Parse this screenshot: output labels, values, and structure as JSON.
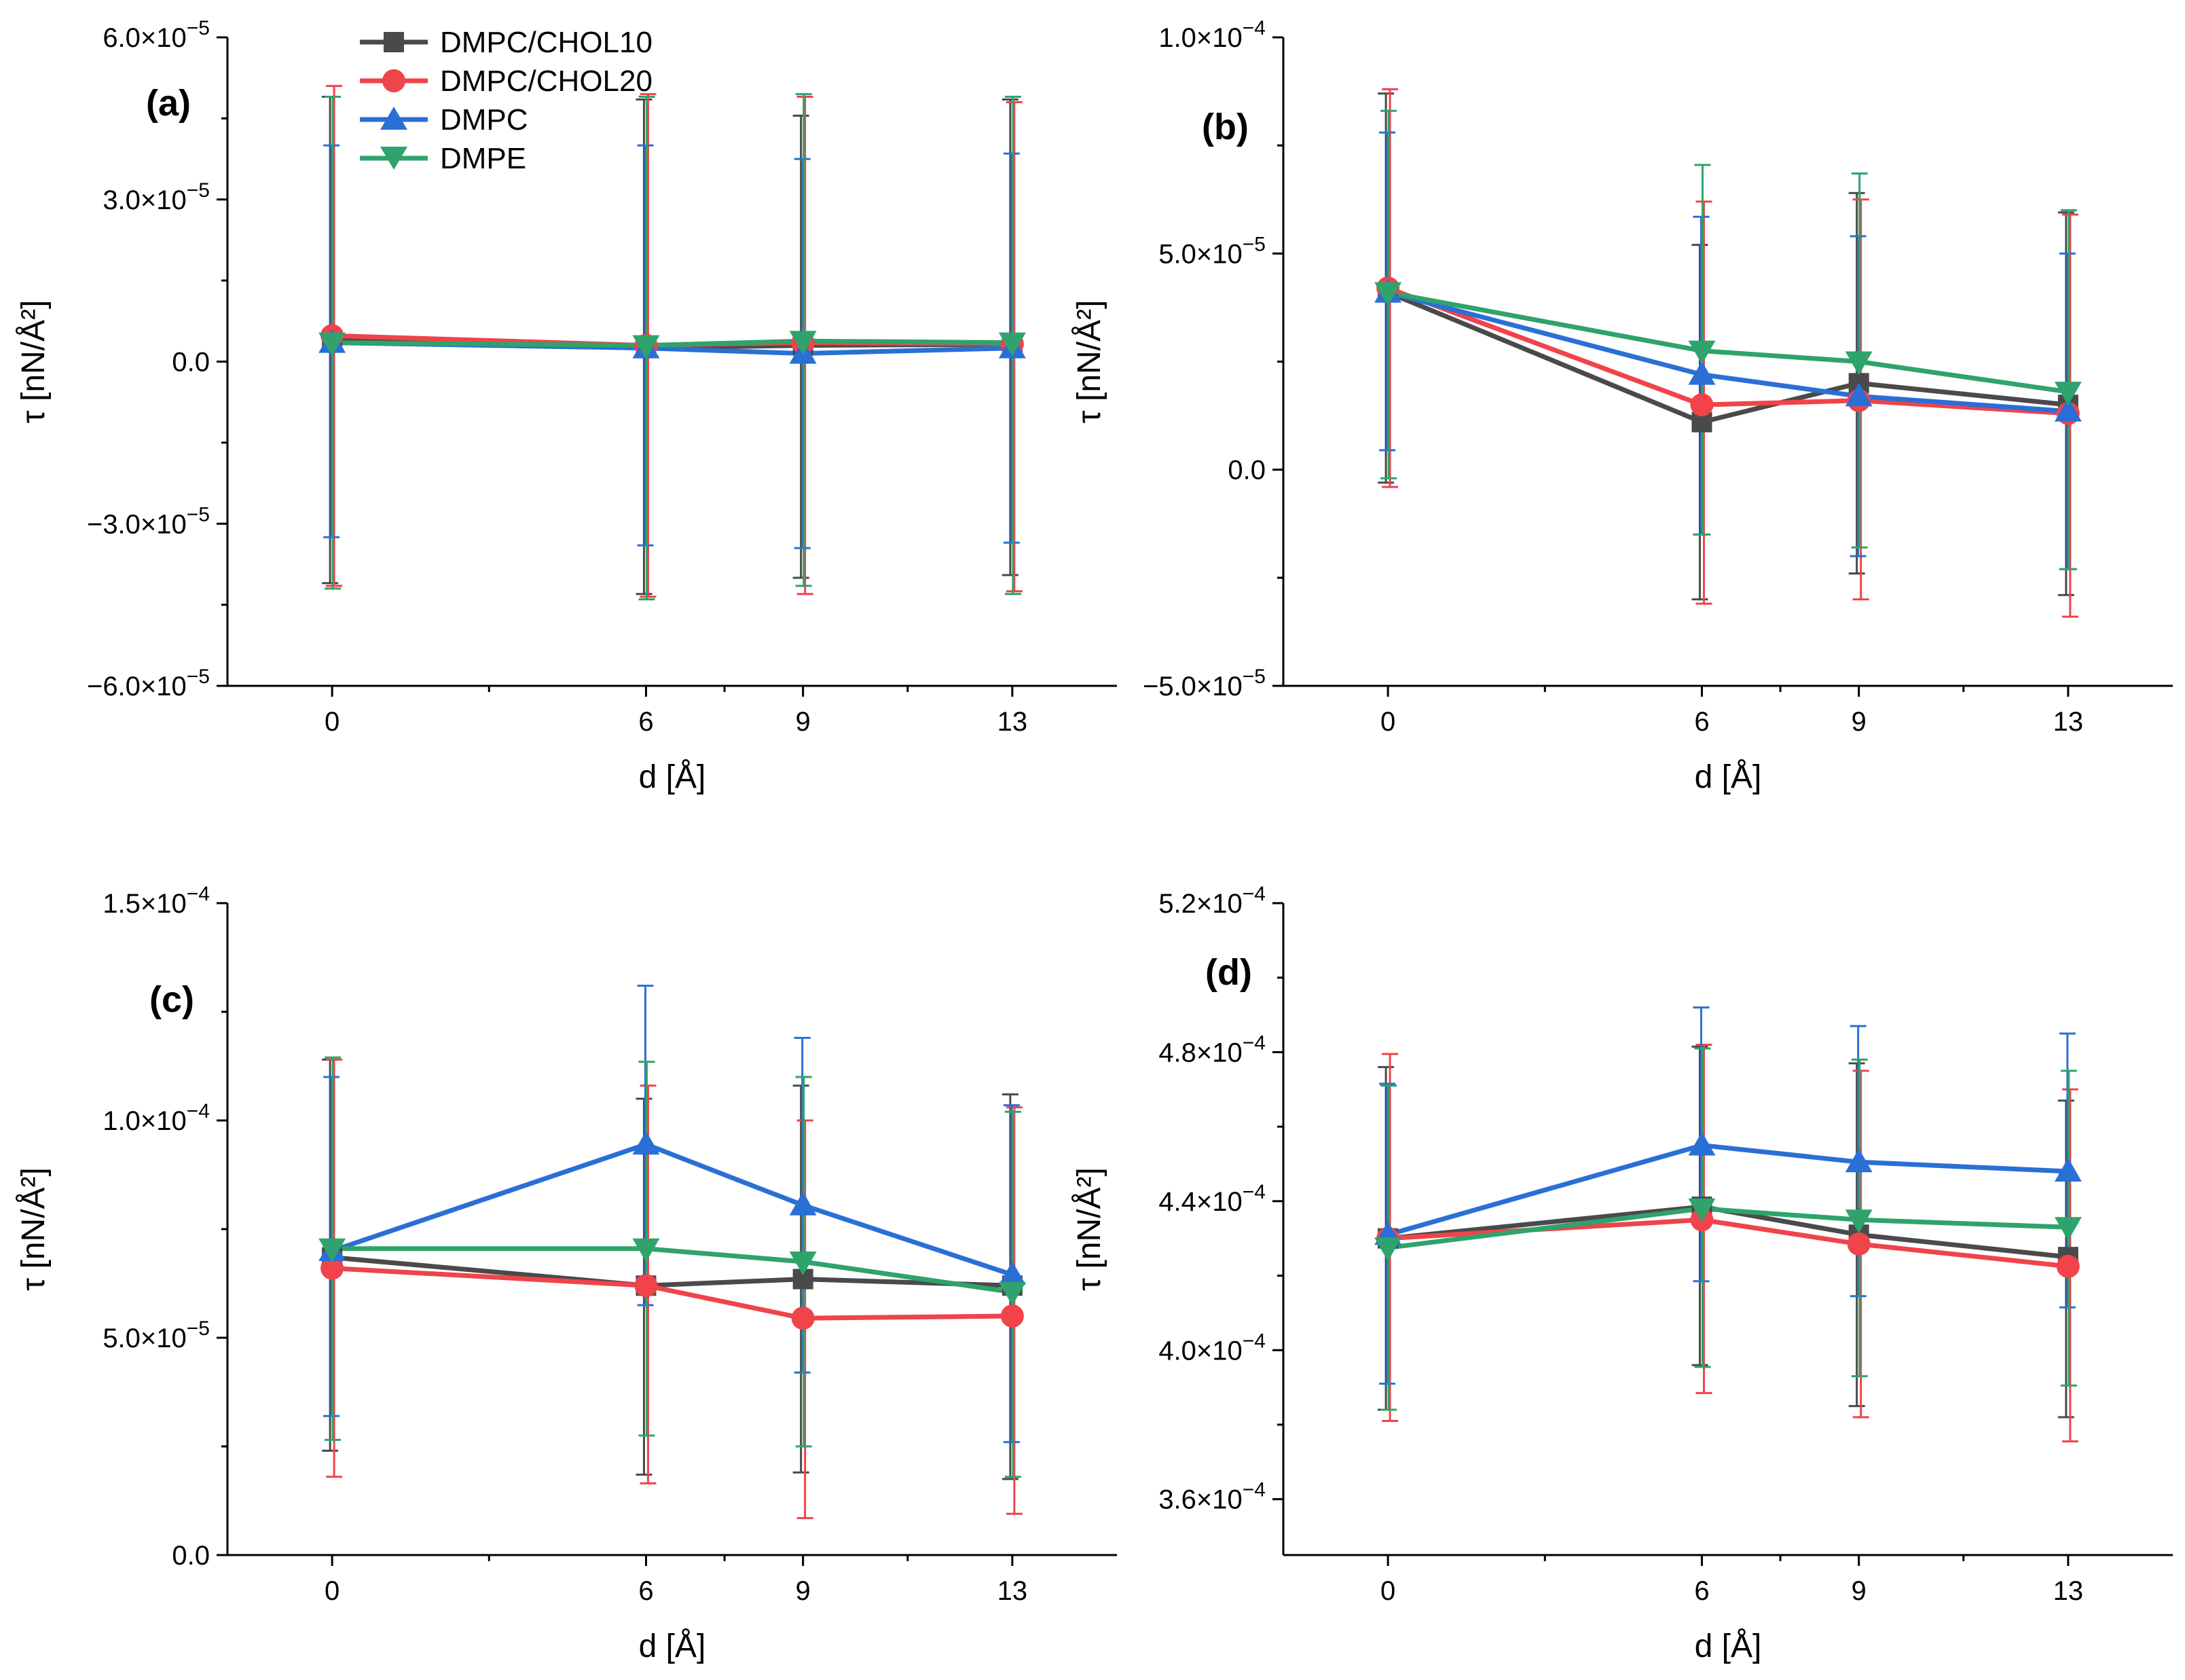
{
  "colors": {
    "DMPC/CHOL10": "#4a4a4a",
    "DMPC/CHOL20": "#f0434a",
    "DMPC": "#2a6fd6",
    "DMPE": "#2fa36b",
    "axis": "#000000"
  },
  "legend": {
    "position": "top-left of panel (a)",
    "entries": [
      {
        "name": "DMPC/CHOL10",
        "marker": "square"
      },
      {
        "name": "DMPC/CHOL20",
        "marker": "circle"
      },
      {
        "name": "DMPC",
        "marker": "triangle-up"
      },
      {
        "name": "DMPE",
        "marker": "triangle-down"
      }
    ]
  },
  "chart_data": [
    {
      "type": "line",
      "panel": "(a)",
      "xlabel": "d [Å]",
      "ylabel": "τ [nN/Å²]",
      "x": [
        0,
        6,
        9,
        13
      ],
      "xticks": [
        "0",
        "6",
        "9",
        "13"
      ],
      "xlim": [
        -2,
        15
      ],
      "ylim": [
        -6e-05,
        6e-05
      ],
      "yticks": [
        -6e-05,
        -3e-05,
        0.0,
        3e-05,
        6e-05
      ],
      "ytick_labels": [
        {
          "m": "−6.0×10",
          "e": "−5"
        },
        {
          "m": "−3.0×10",
          "e": "−5"
        },
        {
          "m": "0.0",
          "e": ""
        },
        {
          "m": "3.0×10",
          "e": "−5"
        },
        {
          "m": "6.0×10",
          "e": "−5"
        }
      ],
      "series": [
        {
          "name": "DMPC/CHOL10",
          "values": [
            4e-06,
            2.5e-06,
            3e-06,
            3.2e-06
          ],
          "err_low": [
            -4.1e-05,
            -4.3e-05,
            -4e-05,
            -3.95e-05
          ],
          "err_high": [
            4.9e-05,
            4.85e-05,
            4.55e-05,
            4.85e-05
          ]
        },
        {
          "name": "DMPC/CHOL20",
          "values": [
            4.8e-06,
            3e-06,
            3.5e-06,
            3.3e-06
          ],
          "err_low": [
            -4.15e-05,
            -4.35e-05,
            -4.3e-05,
            -4.25e-05
          ],
          "err_high": [
            5.1e-05,
            4.95e-05,
            4.9e-05,
            4.8e-05
          ]
        },
        {
          "name": "DMPC",
          "values": [
            3.5e-06,
            2.5e-06,
            1.5e-06,
            2.5e-06
          ],
          "err_low": [
            -3.25e-05,
            -3.4e-05,
            -3.45e-05,
            -3.35e-05
          ],
          "err_high": [
            4e-05,
            4e-05,
            3.75e-05,
            3.85e-05
          ]
        },
        {
          "name": "DMPE",
          "values": [
            3.5e-06,
            3e-06,
            3.8e-06,
            3.5e-06
          ],
          "err_low": [
            -4.2e-05,
            -4.4e-05,
            -4.15e-05,
            -4.3e-05
          ],
          "err_high": [
            4.9e-05,
            4.9e-05,
            4.95e-05,
            4.9e-05
          ]
        }
      ]
    },
    {
      "type": "line",
      "panel": "(b)",
      "xlabel": "d [Å]",
      "ylabel": "τ [nN/Å²]",
      "x": [
        0,
        6,
        9,
        13
      ],
      "xticks": [
        "0",
        "6",
        "9",
        "13"
      ],
      "xlim": [
        -2,
        15
      ],
      "ylim": [
        -5e-05,
        0.0001
      ],
      "yticks": [
        -5e-05,
        0.0,
        5e-05,
        0.0001
      ],
      "ytick_labels": [
        {
          "m": "−5.0×10",
          "e": "−5"
        },
        {
          "m": "0.0",
          "e": ""
        },
        {
          "m": "5.0×10",
          "e": "−5"
        },
        {
          "m": "1.0×10",
          "e": "−4"
        }
      ],
      "series": [
        {
          "name": "DMPC/CHOL10",
          "values": [
            4.1e-05,
            1.1e-05,
            2e-05,
            1.5e-05
          ],
          "err_low": [
            -3e-06,
            -3e-05,
            -2.4e-05,
            -2.9e-05
          ],
          "err_high": [
            8.7e-05,
            5.2e-05,
            6.4e-05,
            5.95e-05
          ]
        },
        {
          "name": "DMPC/CHOL20",
          "values": [
            4.2e-05,
            1.5e-05,
            1.6e-05,
            1.3e-05
          ],
          "err_low": [
            -4e-06,
            -3.1e-05,
            -3e-05,
            -3.4e-05
          ],
          "err_high": [
            8.8e-05,
            6.2e-05,
            6.25e-05,
            5.9e-05
          ]
        },
        {
          "name": "DMPC",
          "values": [
            4.1e-05,
            2.2e-05,
            1.7e-05,
            1.35e-05
          ],
          "err_low": [
            4.5e-06,
            -1.5e-05,
            -2e-05,
            -2.3e-05
          ],
          "err_high": [
            7.8e-05,
            5.85e-05,
            5.4e-05,
            5e-05
          ]
        },
        {
          "name": "DMPE",
          "values": [
            4.1e-05,
            2.75e-05,
            2.5e-05,
            1.8e-05
          ],
          "err_low": [
            -2e-06,
            -1.5e-05,
            -1.8e-05,
            -2.3e-05
          ],
          "err_high": [
            8.3e-05,
            7.05e-05,
            6.85e-05,
            6e-05
          ]
        }
      ]
    },
    {
      "type": "line",
      "panel": "(c)",
      "xlabel": "d [Å]",
      "ylabel": "τ [nN/Å²]",
      "x": [
        0,
        6,
        9,
        13
      ],
      "xticks": [
        "0",
        "6",
        "9",
        "13"
      ],
      "xlim": [
        -2,
        15
      ],
      "ylim": [
        0.0,
        0.00015
      ],
      "yticks": [
        0.0,
        5e-05,
        0.0001,
        0.00015
      ],
      "ytick_labels": [
        {
          "m": "0.0",
          "e": ""
        },
        {
          "m": "5.0×10",
          "e": "−5"
        },
        {
          "m": "1.0×10",
          "e": "−4"
        },
        {
          "m": "1.5×10",
          "e": "−4"
        }
      ],
      "series": [
        {
          "name": "DMPC/CHOL10",
          "values": [
            6.85e-05,
            6.2e-05,
            6.35e-05,
            6.2e-05
          ],
          "err_low": [
            2.4e-05,
            1.85e-05,
            1.9e-05,
            1.75e-05
          ],
          "err_high": [
            0.000114,
            0.000105,
            0.000108,
            0.000106
          ]
        },
        {
          "name": "DMPC/CHOL20",
          "values": [
            6.6e-05,
            6.2e-05,
            5.45e-05,
            5.5e-05
          ],
          "err_low": [
            1.8e-05,
            1.65e-05,
            8.5e-06,
            9.5e-06
          ],
          "err_high": [
            0.000114,
            0.000108,
            0.0001,
            0.000103
          ]
        },
        {
          "name": "DMPC",
          "values": [
            7e-05,
            9.45e-05,
            8.05e-05,
            6.45e-05
          ],
          "err_low": [
            3.2e-05,
            5.75e-05,
            4.2e-05,
            2.6e-05
          ],
          "err_high": [
            0.00011,
            0.000131,
            0.000119,
            0.0001035
          ]
        },
        {
          "name": "DMPE",
          "values": [
            7.05e-05,
            7.05e-05,
            6.75e-05,
            6.05e-05
          ],
          "err_low": [
            2.65e-05,
            2.75e-05,
            2.5e-05,
            1.8e-05
          ],
          "err_high": [
            0.0001145,
            0.0001135,
            0.00011,
            0.000102
          ]
        }
      ]
    },
    {
      "type": "line",
      "panel": "(d)",
      "xlabel": "d [Å]",
      "ylabel": "τ [nN/Å²]",
      "x": [
        0,
        6,
        9,
        13
      ],
      "xticks": [
        "0",
        "6",
        "9",
        "13"
      ],
      "xlim": [
        -2,
        15
      ],
      "ylim": [
        0.000345,
        0.00052
      ],
      "yticks": [
        0.00036,
        0.0004,
        0.00044,
        0.00048,
        0.00052
      ],
      "ytick_labels": [
        {
          "m": "3.6×10",
          "e": "−4"
        },
        {
          "m": "4.0×10",
          "e": "−4"
        },
        {
          "m": "4.4×10",
          "e": "−4"
        },
        {
          "m": "4.8×10",
          "e": "−4"
        },
        {
          "m": "5.2×10",
          "e": "−4"
        }
      ],
      "series": [
        {
          "name": "DMPC/CHOL10",
          "values": [
            0.00043,
            0.0004385,
            0.000431,
            0.000425
          ],
          "err_low": [
            0.000384,
            0.000396,
            0.000385,
            0.000382
          ],
          "err_high": [
            0.000476,
            0.0004815,
            0.000477,
            0.000467
          ]
        },
        {
          "name": "DMPC/CHOL20",
          "values": [
            0.00043,
            0.000435,
            0.0004285,
            0.0004225
          ],
          "err_low": [
            0.000381,
            0.0003885,
            0.000382,
            0.0003755
          ],
          "err_high": [
            0.0004795,
            0.000482,
            0.000475,
            0.00047
          ]
        },
        {
          "name": "DMPC",
          "values": [
            0.000431,
            0.000455,
            0.0004505,
            0.000448
          ],
          "err_low": [
            0.000391,
            0.0004185,
            0.0004145,
            0.0004115
          ],
          "err_high": [
            0.0004715,
            0.000492,
            0.000487,
            0.000485
          ]
        },
        {
          "name": "DMPE",
          "values": [
            0.0004275,
            0.000438,
            0.000435,
            0.000433
          ],
          "err_low": [
            0.000384,
            0.0003955,
            0.000393,
            0.0003905
          ],
          "err_high": [
            0.000471,
            0.000481,
            0.000478,
            0.000475
          ]
        }
      ]
    }
  ]
}
